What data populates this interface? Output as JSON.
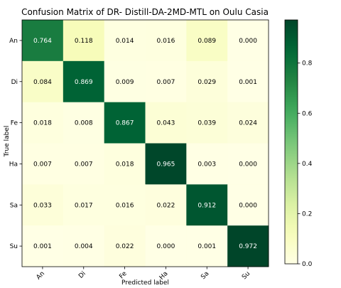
{
  "chart_data": {
    "type": "heatmap",
    "title": "Confusion Matrix of DR- Distill-DA-2MD-MTL on Oulu Casia",
    "xlabel": "Predicted label",
    "ylabel": "True label",
    "x_categories": [
      "An",
      "Di",
      "Fe",
      "Ha",
      "Sa",
      "Su"
    ],
    "y_categories": [
      "An",
      "Di",
      "Fe",
      "Ha",
      "Sa",
      "Su"
    ],
    "values": [
      [
        0.764,
        0.118,
        0.014,
        0.016,
        0.089,
        0.0
      ],
      [
        0.084,
        0.869,
        0.009,
        0.007,
        0.029,
        0.001
      ],
      [
        0.018,
        0.008,
        0.867,
        0.043,
        0.039,
        0.024
      ],
      [
        0.007,
        0.007,
        0.018,
        0.965,
        0.003,
        0.0
      ],
      [
        0.033,
        0.017,
        0.016,
        0.022,
        0.912,
        0.0
      ],
      [
        0.001,
        0.004,
        0.022,
        0.0,
        0.001,
        0.972
      ]
    ],
    "value_labels": [
      [
        "0.764",
        "0.118",
        "0.014",
        "0.016",
        "0.089",
        "0.000"
      ],
      [
        "0.084",
        "0.869",
        "0.009",
        "0.007",
        "0.029",
        "0.001"
      ],
      [
        "0.018",
        "0.008",
        "0.867",
        "0.043",
        "0.039",
        "0.024"
      ],
      [
        "0.007",
        "0.007",
        "0.018",
        "0.965",
        "0.003",
        "0.000"
      ],
      [
        "0.033",
        "0.017",
        "0.016",
        "0.022",
        "0.912",
        "0.000"
      ],
      [
        "0.001",
        "0.004",
        "0.022",
        "0.000",
        "0.001",
        "0.972"
      ]
    ],
    "colormap": "YlGn",
    "vmin": 0,
    "vmax": 0.972,
    "colorbar_ticks": [
      {
        "value": 0.0,
        "label": "0.0"
      },
      {
        "value": 0.2,
        "label": "0.2"
      },
      {
        "value": 0.4,
        "label": "0.4"
      },
      {
        "value": 0.6,
        "label": "0.6"
      },
      {
        "value": 0.8,
        "label": "0.8"
      }
    ],
    "grid": false
  }
}
